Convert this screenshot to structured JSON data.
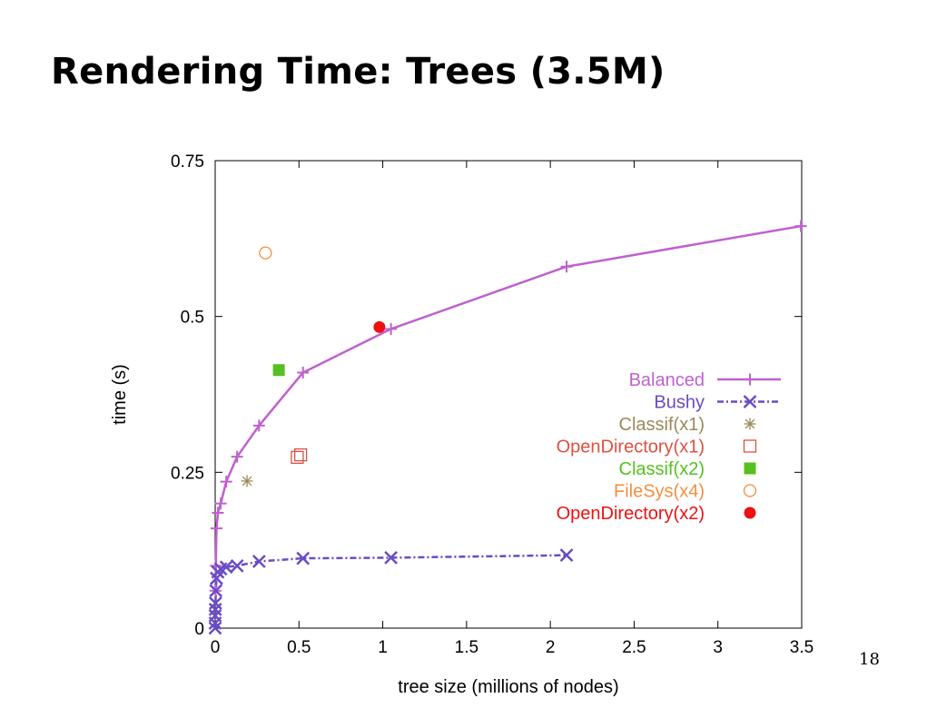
{
  "slide": {
    "title": "Rendering Time: Trees (3.5M)",
    "page_number": "18"
  },
  "chart_data": {
    "type": "line",
    "xlabel": "tree size (millions of nodes)",
    "ylabel": "time (s)",
    "xlim": [
      0,
      3.5
    ],
    "ylim": [
      0,
      0.75
    ],
    "xticks": [
      0,
      0.5,
      1,
      1.5,
      2,
      2.5,
      3,
      3.5
    ],
    "xtick_labels": [
      "0",
      "0.5",
      "1",
      "1.5",
      "2",
      "2.5",
      "3",
      "3.5"
    ],
    "yticks": [
      0,
      0.25,
      0.5,
      0.75
    ],
    "ytick_labels": [
      "0",
      "0.25",
      "0.5",
      "0.75"
    ],
    "grid": false,
    "legend_position": "right",
    "series": [
      {
        "name": "Balanced",
        "color": "#c060d0",
        "marker": "plus",
        "line": "solid",
        "x": [
          0.002,
          0.004,
          0.008,
          0.016,
          0.033,
          0.066,
          0.131,
          0.262,
          0.524,
          1.049,
          2.097,
          3.495
        ],
        "y": [
          0.06,
          0.1,
          0.16,
          0.185,
          0.2,
          0.235,
          0.275,
          0.325,
          0.41,
          0.48,
          0.58,
          0.645
        ]
      },
      {
        "name": "Bushy",
        "color": "#6a4cc4",
        "marker": "x",
        "line": "dash-dot",
        "x": [
          0.0,
          0.0,
          0.0,
          0.001,
          0.002,
          0.004,
          0.008,
          0.016,
          0.033,
          0.066,
          0.131,
          0.262,
          0.524,
          1.049,
          2.097
        ],
        "y": [
          0.0,
          0.008,
          0.02,
          0.03,
          0.04,
          0.06,
          0.08,
          0.09,
          0.095,
          0.098,
          0.1,
          0.107,
          0.112,
          0.113,
          0.117
        ]
      },
      {
        "name": "Classif(x1)",
        "color": "#9a8a5a",
        "marker": "star",
        "line": "none",
        "x": [
          0.19
        ],
        "y": [
          0.236
        ]
      },
      {
        "name": "OpenDirectory(x1)",
        "color": "#e05040",
        "marker": "open-square",
        "line": "none",
        "x": [
          0.49,
          0.51
        ],
        "y": [
          0.274,
          0.278
        ]
      },
      {
        "name": "Classif(x2)",
        "color": "#55c020",
        "marker": "filled-square",
        "line": "none",
        "x": [
          0.38
        ],
        "y": [
          0.414
        ]
      },
      {
        "name": "FileSys(x4)",
        "color": "#f09040",
        "marker": "open-circle",
        "line": "none",
        "x": [
          0.3
        ],
        "y": [
          0.602
        ]
      },
      {
        "name": "OpenDirectory(x2)",
        "color": "#ee1111",
        "marker": "filled-circle",
        "line": "none",
        "x": [
          0.98
        ],
        "y": [
          0.483
        ]
      }
    ]
  }
}
